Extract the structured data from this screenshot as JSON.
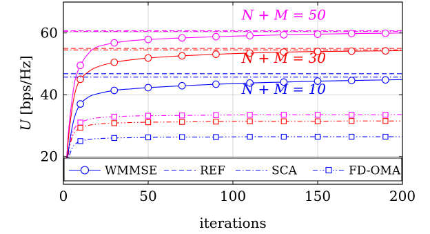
{
  "chart_data": {
    "type": "line",
    "xlabel": "iterations",
    "ylabel": {
      "symbol": "U",
      "unit": "[bps/Hz]"
    },
    "xlim": [
      0,
      200
    ],
    "ylim": [
      11,
      70
    ],
    "xticks": [
      0,
      50,
      100,
      150,
      200
    ],
    "yticks": [
      20,
      40,
      60
    ],
    "grid": true,
    "legend": {
      "placement": "bottom",
      "entries": [
        {
          "label": "WMMSE",
          "style": "solid",
          "marker": "circle"
        },
        {
          "label": "REF",
          "style": "dashed",
          "marker": "none"
        },
        {
          "label": "SCA",
          "style": "dashdot",
          "marker": "none"
        },
        {
          "label": "FD-OMA",
          "style": "dashdotdot",
          "marker": "square"
        }
      ]
    },
    "annotations": [
      {
        "text": "N + M = 50",
        "color": "#ff00ff",
        "x": 130,
        "y": 64.3
      },
      {
        "text": "N + M = 30",
        "color": "#ff0000",
        "x": 130,
        "y": 50.3
      },
      {
        "text": "N + M = 10",
        "color": "#0000ff",
        "x": 130,
        "y": 40.3
      }
    ],
    "groups": [
      {
        "color": "#ff00ff",
        "wmmse": {
          "x": [
            1,
            3,
            5,
            7,
            10,
            15,
            20,
            30,
            40,
            50,
            70,
            90,
            110,
            130,
            150,
            170,
            190,
            200
          ],
          "y": [
            12,
            28,
            38,
            45,
            49.5,
            53.5,
            55.5,
            56.8,
            57.5,
            57.9,
            58.4,
            58.8,
            59.1,
            59.4,
            59.6,
            59.8,
            59.9,
            60.0
          ],
          "markers_x": [
            10,
            30,
            50,
            70,
            90,
            110,
            130,
            150,
            170,
            190
          ]
        },
        "ref": 60.7,
        "sca": 60.5,
        "fdoma": {
          "x": [
            1,
            3,
            5,
            7,
            10,
            15,
            20,
            30,
            40,
            50,
            70,
            90,
            110,
            130,
            150,
            170,
            190,
            200
          ],
          "y": [
            12,
            22,
            27,
            29.5,
            31,
            32,
            32.5,
            32.9,
            33.1,
            33.2,
            33.3,
            33.4,
            33.5,
            33.5,
            33.5,
            33.5,
            33.5,
            33.6
          ],
          "markers_x": [
            10,
            30,
            50,
            70,
            90,
            110,
            130,
            150,
            170,
            190
          ]
        }
      },
      {
        "color": "#ff0000",
        "wmmse": {
          "x": [
            1,
            3,
            5,
            7,
            10,
            15,
            20,
            30,
            40,
            50,
            70,
            90,
            110,
            130,
            150,
            170,
            190,
            200
          ],
          "y": [
            12,
            26,
            35,
            41,
            45,
            47.5,
            49,
            50.5,
            51.3,
            51.9,
            52.6,
            53.1,
            53.5,
            53.8,
            54.0,
            54.1,
            54.2,
            54.3
          ],
          "markers_x": [
            10,
            30,
            50,
            70,
            90,
            110,
            130,
            150,
            170,
            190
          ]
        },
        "ref": 55.0,
        "sca": 54.5,
        "fdoma": {
          "x": [
            1,
            3,
            5,
            7,
            10,
            15,
            20,
            30,
            40,
            50,
            70,
            90,
            110,
            130,
            150,
            170,
            190,
            200
          ],
          "y": [
            12,
            21,
            26,
            28,
            29.3,
            30.1,
            30.5,
            30.8,
            31.0,
            31.1,
            31.2,
            31.3,
            31.4,
            31.4,
            31.4,
            31.5,
            31.5,
            31.5
          ],
          "markers_x": [
            10,
            30,
            50,
            70,
            90,
            110,
            130,
            150,
            170,
            190
          ]
        }
      },
      {
        "color": "#0000ff",
        "wmmse": {
          "x": [
            1,
            3,
            5,
            7,
            10,
            15,
            20,
            30,
            40,
            50,
            70,
            90,
            110,
            130,
            150,
            170,
            190,
            200
          ],
          "y": [
            12,
            22,
            29,
            33.5,
            37,
            39.3,
            40.3,
            41.4,
            41.9,
            42.3,
            42.9,
            43.4,
            43.8,
            44.1,
            44.4,
            44.6,
            44.8,
            44.9
          ],
          "markers_x": [
            10,
            30,
            50,
            70,
            90,
            110,
            130,
            150,
            170,
            190
          ]
        },
        "ref": 46.8,
        "sca": 45.7,
        "fdoma": {
          "x": [
            1,
            3,
            5,
            7,
            10,
            15,
            20,
            30,
            40,
            50,
            70,
            90,
            110,
            130,
            150,
            170,
            190,
            200
          ],
          "y": [
            12,
            19,
            22.5,
            24,
            25,
            25.5,
            25.8,
            26.0,
            26.1,
            26.2,
            26.3,
            26.3,
            26.4,
            26.4,
            26.4,
            26.4,
            26.4,
            26.4
          ],
          "markers_x": [
            10,
            30,
            50,
            70,
            90,
            110,
            130,
            150,
            170,
            190
          ]
        }
      }
    ]
  }
}
